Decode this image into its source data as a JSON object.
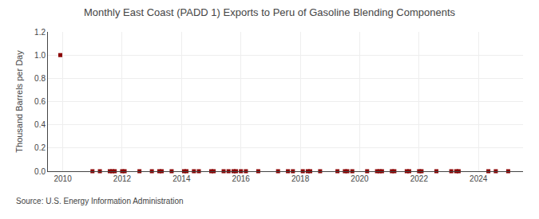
{
  "chart_data": {
    "type": "scatter",
    "title": "Monthly East Coast (PADD 1) Exports to Peru of Gasoline Blending Components",
    "ylabel": "Thousand Barrels per Day",
    "annotations": [
      "Source: U.S. Energy Information Administration"
    ],
    "color": "#8b0000",
    "marker": "square",
    "grid": true,
    "xlim": [
      2009.5,
      2025.5
    ],
    "xticks": [
      2010,
      2012,
      2014,
      2016,
      2018,
      2020,
      2022,
      2024
    ],
    "ylim": [
      0.0,
      1.2
    ],
    "yticks": [
      {
        "value": 0.0,
        "label": "0.0"
      },
      0.2,
      0.4,
      0.6,
      0.8,
      {
        "value": 1.0,
        "label": "1.0"
      },
      1.2
    ],
    "x": [
      2009.917,
      2011.0,
      2011.25,
      2011.583,
      2011.667,
      2011.75,
      2012.0,
      2012.083,
      2012.583,
      2013.0,
      2013.25,
      2013.333,
      2013.667,
      2014.083,
      2014.167,
      2014.417,
      2014.583,
      2015.0,
      2015.083,
      2015.417,
      2015.583,
      2015.75,
      2015.833,
      2016.0,
      2016.167,
      2016.583,
      2017.25,
      2017.583,
      2017.75,
      2018.083,
      2018.25,
      2018.333,
      2018.667,
      2019.25,
      2019.5,
      2019.583,
      2019.75,
      2020.25,
      2020.583,
      2020.667,
      2020.75,
      2021.083,
      2021.167,
      2021.583,
      2021.667,
      2022.0,
      2022.083,
      2022.583,
      2023.083,
      2023.25,
      2023.333,
      2024.333,
      2024.583,
      2025.0
    ],
    "values": [
      1.0,
      0.0,
      0.0,
      0.0,
      0.0,
      0.0,
      0.0,
      0.0,
      0.0,
      0.0,
      0.0,
      0.0,
      0.0,
      0.0,
      0.0,
      0.0,
      0.0,
      0.0,
      0.0,
      0.0,
      0.0,
      0.0,
      0.0,
      0.0,
      0.0,
      0.0,
      0.0,
      0.0,
      0.0,
      0.0,
      0.0,
      0.0,
      0.0,
      0.0,
      0.0,
      0.0,
      0.0,
      0.0,
      0.0,
      0.0,
      0.0,
      0.0,
      0.0,
      0.0,
      0.0,
      0.0,
      0.0,
      0.0,
      0.0,
      0.0,
      0.0,
      0.0,
      0.0,
      0.0
    ]
  }
}
